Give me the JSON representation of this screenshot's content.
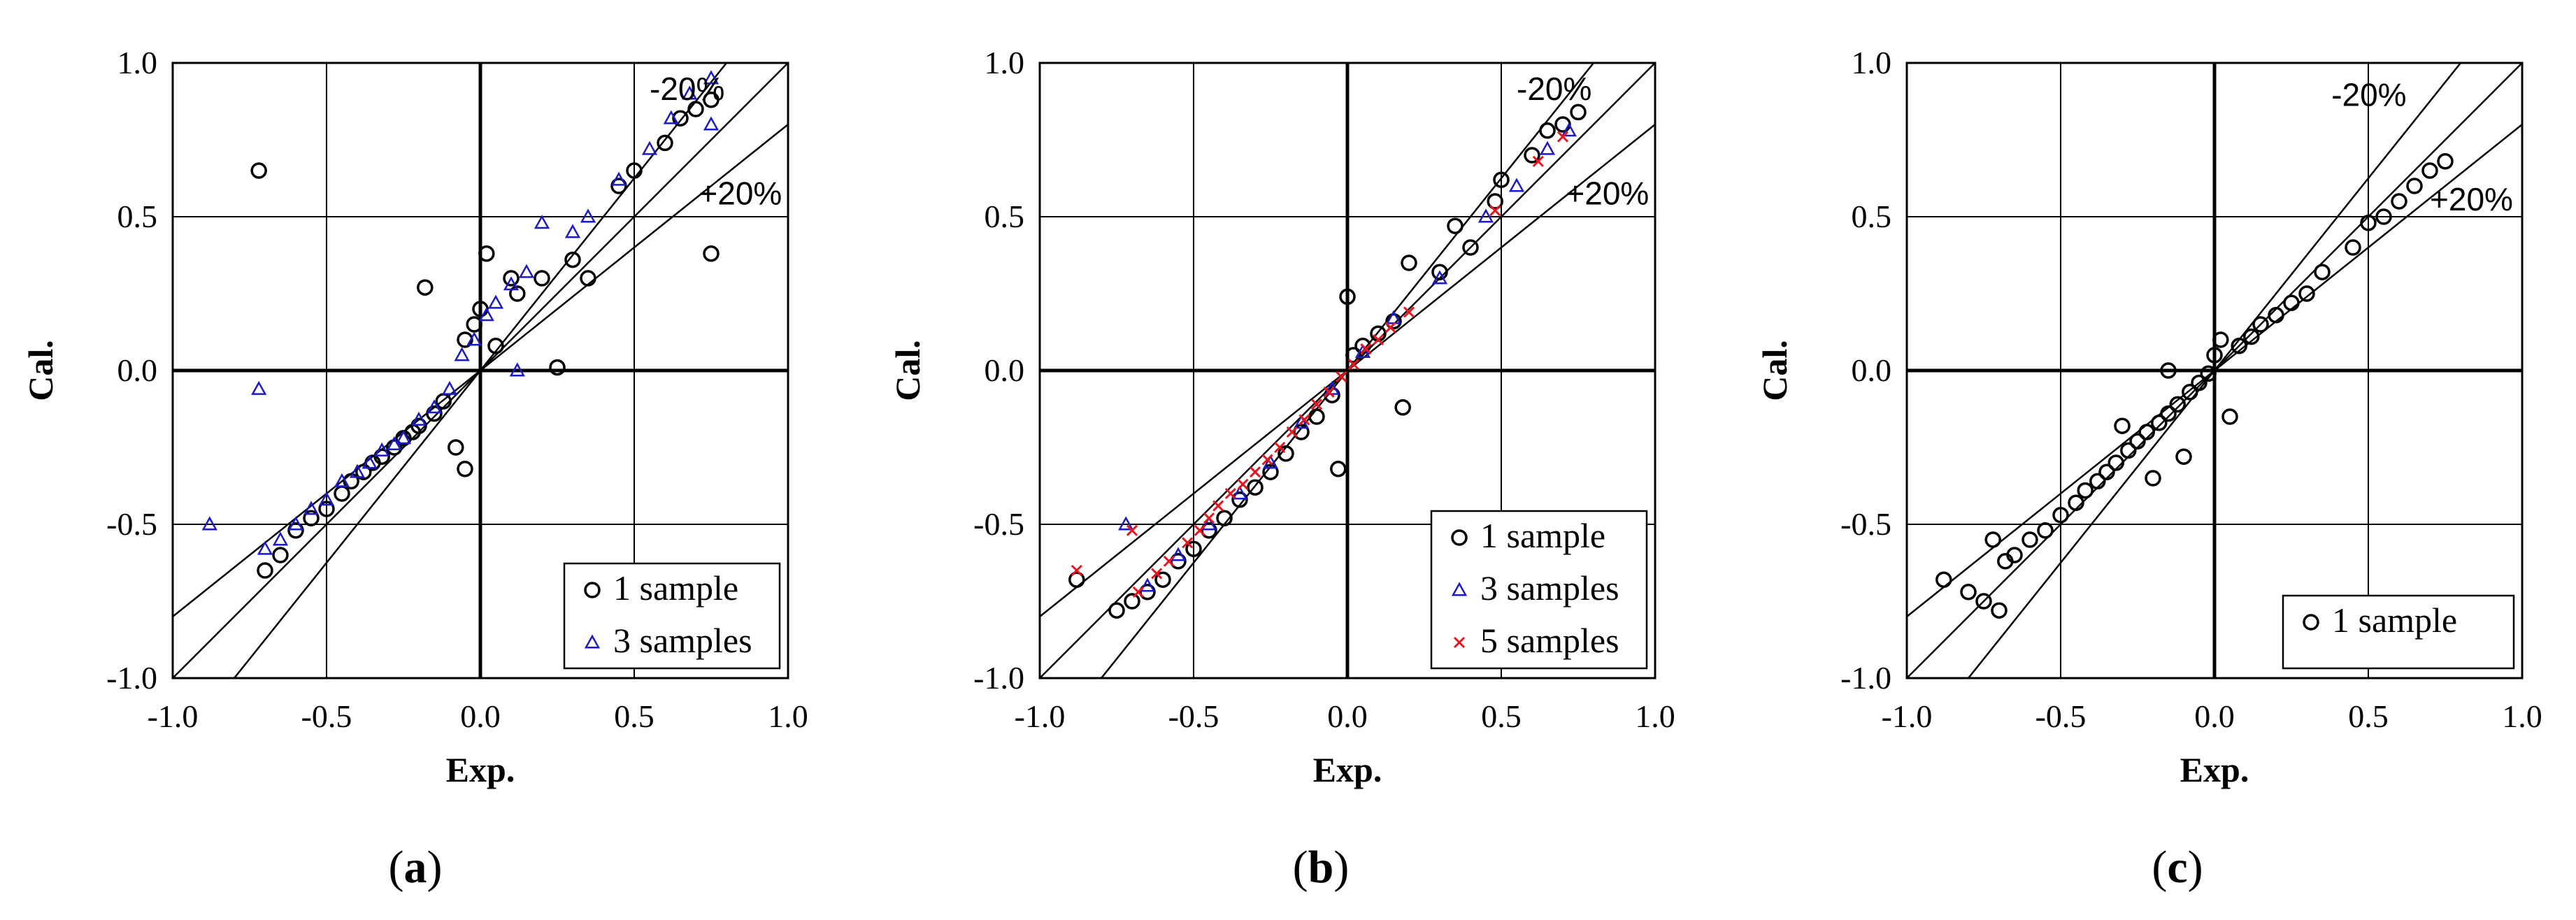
{
  "chart_data": [
    {
      "type": "scatter",
      "panel": "(a)",
      "caption_paren_open": "(",
      "caption_letter": "a",
      "caption_paren_close": ")",
      "xlabel": "Exp.",
      "ylabel": "Cal.",
      "xlim": [
        -1.0,
        1.0
      ],
      "ylim": [
        -1.0,
        1.0
      ],
      "xticks": [
        "-1.0",
        "-0.5",
        "0.0",
        "0.5",
        "1.0"
      ],
      "yticks": [
        "-1.0",
        "-0.5",
        "0.0",
        "0.5",
        "1.0"
      ],
      "grid": true,
      "reference_lines": [
        {
          "label": "-20%",
          "slope": 1.25,
          "text_at": [
            0.55,
            0.88
          ]
        },
        {
          "label": "",
          "slope": 1.0
        },
        {
          "label": "+20%",
          "slope": 0.8,
          "text_at": [
            0.71,
            0.54
          ]
        }
      ],
      "legend": {
        "position": "bottom-right",
        "entries": [
          "1 sample",
          "3 samples"
        ]
      },
      "series": [
        {
          "name": "1 sample",
          "marker": "circle",
          "color": "#000000",
          "points": [
            [
              -0.72,
              0.65
            ],
            [
              -0.7,
              -0.65
            ],
            [
              -0.65,
              -0.6
            ],
            [
              -0.6,
              -0.52
            ],
            [
              -0.55,
              -0.48
            ],
            [
              -0.5,
              -0.45
            ],
            [
              -0.45,
              -0.4
            ],
            [
              -0.42,
              -0.36
            ],
            [
              -0.38,
              -0.33
            ],
            [
              -0.35,
              -0.3
            ],
            [
              -0.32,
              -0.28
            ],
            [
              -0.28,
              -0.25
            ],
            [
              -0.25,
              -0.22
            ],
            [
              -0.22,
              -0.2
            ],
            [
              -0.2,
              -0.18
            ],
            [
              -0.18,
              0.27
            ],
            [
              -0.15,
              -0.14
            ],
            [
              -0.12,
              -0.1
            ],
            [
              -0.08,
              -0.25
            ],
            [
              -0.05,
              0.1
            ],
            [
              -0.02,
              0.15
            ],
            [
              0.0,
              0.2
            ],
            [
              0.02,
              0.38
            ],
            [
              0.05,
              0.08
            ],
            [
              -0.05,
              -0.32
            ],
            [
              0.1,
              0.3
            ],
            [
              0.12,
              0.25
            ],
            [
              0.2,
              0.3
            ],
            [
              0.25,
              0.01
            ],
            [
              0.3,
              0.36
            ],
            [
              0.35,
              0.3
            ],
            [
              0.45,
              0.6
            ],
            [
              0.5,
              0.65
            ],
            [
              0.6,
              0.74
            ],
            [
              0.65,
              0.82
            ],
            [
              0.7,
              0.85
            ],
            [
              0.75,
              0.88
            ],
            [
              0.75,
              0.38
            ]
          ]
        },
        {
          "name": "3 samples",
          "marker": "triangle",
          "color": "#1a1ac8",
          "points": [
            [
              -0.88,
              -0.5
            ],
            [
              -0.72,
              -0.06
            ],
            [
              -0.7,
              -0.58
            ],
            [
              -0.65,
              -0.55
            ],
            [
              -0.6,
              -0.5
            ],
            [
              -0.55,
              -0.45
            ],
            [
              -0.5,
              -0.42
            ],
            [
              -0.45,
              -0.36
            ],
            [
              -0.4,
              -0.33
            ],
            [
              -0.36,
              -0.3
            ],
            [
              -0.32,
              -0.26
            ],
            [
              -0.28,
              -0.24
            ],
            [
              -0.25,
              -0.22
            ],
            [
              -0.2,
              -0.16
            ],
            [
              -0.15,
              -0.12
            ],
            [
              -0.1,
              -0.06
            ],
            [
              -0.06,
              0.05
            ],
            [
              -0.02,
              0.1
            ],
            [
              0.02,
              0.18
            ],
            [
              0.05,
              0.22
            ],
            [
              0.1,
              0.28
            ],
            [
              0.15,
              0.32
            ],
            [
              0.2,
              0.48
            ],
            [
              0.3,
              0.45
            ],
            [
              0.35,
              0.5
            ],
            [
              0.45,
              0.62
            ],
            [
              0.55,
              0.72
            ],
            [
              0.62,
              0.82
            ],
            [
              0.68,
              0.9
            ],
            [
              0.75,
              0.95
            ],
            [
              0.75,
              0.8
            ],
            [
              0.12,
              0.0
            ]
          ]
        }
      ]
    },
    {
      "type": "scatter",
      "panel": "(b)",
      "caption_paren_open": "(",
      "caption_letter": "b",
      "caption_paren_close": ")",
      "xlabel": "Exp.",
      "ylabel": "Cal.",
      "xlim": [
        -1.0,
        1.0
      ],
      "ylim": [
        -1.0,
        1.0
      ],
      "xticks": [
        "-1.0",
        "-0.5",
        "0.0",
        "0.5",
        "1.0"
      ],
      "yticks": [
        "-1.0",
        "-0.5",
        "0.0",
        "0.5",
        "1.0"
      ],
      "grid": true,
      "reference_lines": [
        {
          "label": "-20%",
          "slope": 1.25,
          "text_at": [
            0.55,
            0.88
          ]
        },
        {
          "label": "",
          "slope": 1.0
        },
        {
          "label": "+20%",
          "slope": 0.8,
          "text_at": [
            0.71,
            0.54
          ]
        }
      ],
      "legend": {
        "position": "bottom-right",
        "entries": [
          "1 sample",
          "3 samples",
          "5 samples"
        ]
      },
      "series": [
        {
          "name": "1 sample",
          "marker": "circle",
          "color": "#000000",
          "points": [
            [
              -0.88,
              -0.68
            ],
            [
              -0.75,
              -0.78
            ],
            [
              -0.7,
              -0.75
            ],
            [
              -0.65,
              -0.72
            ],
            [
              -0.6,
              -0.68
            ],
            [
              -0.55,
              -0.62
            ],
            [
              -0.5,
              -0.58
            ],
            [
              -0.45,
              -0.52
            ],
            [
              -0.4,
              -0.48
            ],
            [
              -0.35,
              -0.42
            ],
            [
              -0.3,
              -0.38
            ],
            [
              -0.25,
              -0.33
            ],
            [
              -0.2,
              -0.27
            ],
            [
              -0.15,
              -0.2
            ],
            [
              -0.1,
              -0.15
            ],
            [
              -0.05,
              -0.08
            ],
            [
              -0.03,
              -0.32
            ],
            [
              0.0,
              0.24
            ],
            [
              0.02,
              0.05
            ],
            [
              0.05,
              0.08
            ],
            [
              0.1,
              0.12
            ],
            [
              0.15,
              0.16
            ],
            [
              0.18,
              -0.12
            ],
            [
              0.2,
              0.35
            ],
            [
              0.3,
              0.32
            ],
            [
              0.35,
              0.47
            ],
            [
              0.4,
              0.4
            ],
            [
              0.48,
              0.55
            ],
            [
              0.5,
              0.62
            ],
            [
              0.6,
              0.7
            ],
            [
              0.65,
              0.78
            ],
            [
              0.7,
              0.8
            ],
            [
              0.75,
              0.84
            ]
          ]
        },
        {
          "name": "3 samples",
          "marker": "triangle",
          "color": "#1a1ac8",
          "points": [
            [
              -0.72,
              -0.5
            ],
            [
              -0.65,
              -0.7
            ],
            [
              -0.55,
              -0.6
            ],
            [
              -0.45,
              -0.5
            ],
            [
              -0.35,
              -0.4
            ],
            [
              -0.25,
              -0.3
            ],
            [
              -0.15,
              -0.17
            ],
            [
              -0.05,
              -0.06
            ],
            [
              0.05,
              0.06
            ],
            [
              0.15,
              0.17
            ],
            [
              0.3,
              0.3
            ],
            [
              0.45,
              0.5
            ],
            [
              0.55,
              0.6
            ],
            [
              0.65,
              0.72
            ],
            [
              0.72,
              0.78
            ]
          ]
        },
        {
          "name": "5 samples",
          "marker": "x",
          "color": "#e8141e",
          "points": [
            [
              -0.88,
              -0.65
            ],
            [
              -0.7,
              -0.52
            ],
            [
              -0.68,
              -0.72
            ],
            [
              -0.62,
              -0.66
            ],
            [
              -0.58,
              -0.62
            ],
            [
              -0.52,
              -0.56
            ],
            [
              -0.48,
              -0.52
            ],
            [
              -0.45,
              -0.48
            ],
            [
              -0.42,
              -0.44
            ],
            [
              -0.38,
              -0.4
            ],
            [
              -0.34,
              -0.37
            ],
            [
              -0.3,
              -0.33
            ],
            [
              -0.26,
              -0.29
            ],
            [
              -0.22,
              -0.25
            ],
            [
              -0.18,
              -0.2
            ],
            [
              -0.14,
              -0.16
            ],
            [
              -0.1,
              -0.11
            ],
            [
              -0.06,
              -0.07
            ],
            [
              -0.02,
              -0.02
            ],
            [
              0.02,
              0.02
            ],
            [
              0.06,
              0.07
            ],
            [
              0.1,
              0.1
            ],
            [
              0.14,
              0.14
            ],
            [
              0.2,
              0.19
            ],
            [
              0.48,
              0.52
            ],
            [
              0.62,
              0.68
            ],
            [
              0.7,
              0.76
            ]
          ]
        }
      ]
    },
    {
      "type": "scatter",
      "panel": "(c)",
      "caption_paren_open": "(",
      "caption_letter": "c",
      "caption_paren_close": ")",
      "xlabel": "Exp.",
      "ylabel": "Cal.",
      "xlim": [
        -1.0,
        1.0
      ],
      "ylim": [
        -1.0,
        1.0
      ],
      "xticks": [
        "-1.0",
        "-0.5",
        "0.0",
        "0.5",
        "1.0"
      ],
      "yticks": [
        "-1.0",
        "-0.5",
        "0.0",
        "0.5",
        "1.0"
      ],
      "grid": true,
      "reference_lines": [
        {
          "label": "-20%",
          "slope": 1.25,
          "text_at": [
            0.38,
            0.86
          ]
        },
        {
          "label": "",
          "slope": 1.0
        },
        {
          "label": "+20%",
          "slope": 0.8,
          "text_at": [
            0.7,
            0.52
          ]
        }
      ],
      "legend": {
        "position": "bottom-right",
        "entries": [
          "1 sample"
        ]
      },
      "series": [
        {
          "name": "1 sample",
          "marker": "circle",
          "color": "#000000",
          "points": [
            [
              -0.88,
              -0.68
            ],
            [
              -0.8,
              -0.72
            ],
            [
              -0.75,
              -0.75
            ],
            [
              -0.72,
              -0.55
            ],
            [
              -0.7,
              -0.78
            ],
            [
              -0.68,
              -0.62
            ],
            [
              -0.65,
              -0.6
            ],
            [
              -0.6,
              -0.55
            ],
            [
              -0.55,
              -0.52
            ],
            [
              -0.5,
              -0.47
            ],
            [
              -0.45,
              -0.43
            ],
            [
              -0.42,
              -0.39
            ],
            [
              -0.38,
              -0.36
            ],
            [
              -0.35,
              -0.33
            ],
            [
              -0.32,
              -0.3
            ],
            [
              -0.28,
              -0.26
            ],
            [
              -0.25,
              -0.23
            ],
            [
              -0.22,
              -0.2
            ],
            [
              -0.18,
              -0.17
            ],
            [
              -0.15,
              -0.14
            ],
            [
              -0.12,
              -0.11
            ],
            [
              -0.08,
              -0.07
            ],
            [
              -0.05,
              -0.04
            ],
            [
              -0.02,
              -0.01
            ],
            [
              0.0,
              0.05
            ],
            [
              0.02,
              0.1
            ],
            [
              0.05,
              -0.15
            ],
            [
              0.08,
              0.08
            ],
            [
              0.12,
              0.11
            ],
            [
              0.15,
              0.15
            ],
            [
              0.2,
              0.18
            ],
            [
              0.25,
              0.22
            ],
            [
              0.3,
              0.25
            ],
            [
              0.35,
              0.32
            ],
            [
              0.45,
              0.4
            ],
            [
              0.5,
              0.48
            ],
            [
              0.55,
              0.5
            ],
            [
              0.6,
              0.55
            ],
            [
              0.65,
              0.6
            ],
            [
              0.7,
              0.65
            ],
            [
              0.75,
              0.68
            ],
            [
              -0.3,
              -0.18
            ],
            [
              -0.2,
              -0.35
            ],
            [
              -0.1,
              -0.28
            ],
            [
              -0.15,
              0.0
            ]
          ]
        }
      ]
    }
  ]
}
